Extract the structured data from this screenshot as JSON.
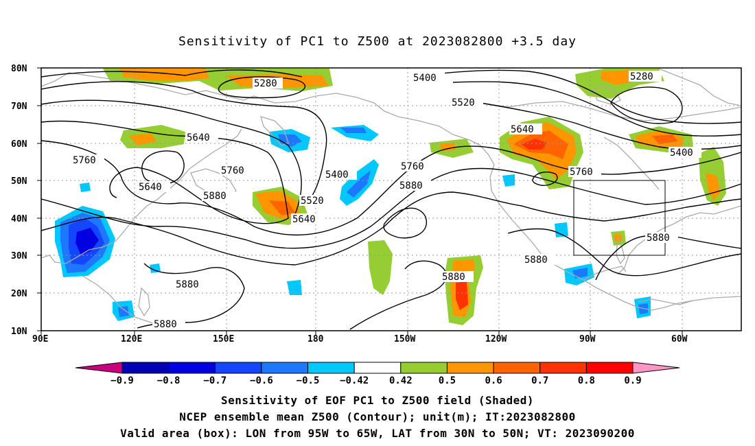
{
  "title": "Sensitivity of PC1 to Z500 at 2023082800 +3.5 day",
  "map": {
    "lat_labels": [
      "80N",
      "70N",
      "60N",
      "50N",
      "40N",
      "30N",
      "20N",
      "10N"
    ],
    "lon_labels": [
      "90E",
      "120E",
      "150E",
      "180",
      "150W",
      "120W",
      "90W",
      "60W"
    ],
    "valid_box": {
      "lon_min": "95W",
      "lon_max": "65W",
      "lat_min": "30N",
      "lat_max": "50N"
    },
    "contour_labels": [
      "5280",
      "5400",
      "5520",
      "5280",
      "5640",
      "5760",
      "5640",
      "5760",
      "5880",
      "5400",
      "5520",
      "5640",
      "5760",
      "5880",
      "5640",
      "5760",
      "5400",
      "5880",
      "5880",
      "5880",
      "5880",
      "5880"
    ]
  },
  "colorbar": {
    "levels": [
      "-0.9",
      "-0.8",
      "-0.7",
      "-0.6",
      "-0.5",
      "-0.42",
      "0.42",
      "0.5",
      "0.6",
      "0.7",
      "0.8",
      "0.9"
    ],
    "colors": [
      "#c8007e",
      "#0000b4",
      "#0000e0",
      "#1446ff",
      "#1e78ff",
      "#00c8ff",
      "#ffffff",
      "#96cd32",
      "#ff9600",
      "#ff6400",
      "#ff3200",
      "#ff0000",
      "#ff96c8"
    ]
  },
  "footer": {
    "line1": "Sensitivity of EOF PC1 to Z500 field (Shaded)",
    "line2": "NCEP ensemble mean Z500 (Contour); unit(m); IT:2023082800",
    "line3": "Valid area (box): LON from 95W to 65W, LAT from 30N to 50N; VT: 2023090200"
  },
  "colors": {
    "coast": "#aaaaaa",
    "contour": "#000000",
    "grid": "#999999",
    "green": "#96cd32",
    "orange": "#ff9600",
    "dark_orange": "#ff6400",
    "red": "#ff3200",
    "light_blue": "#00c8ff",
    "mid_blue": "#1e78ff",
    "blue": "#1446ff",
    "dark_blue": "#0000e0"
  }
}
